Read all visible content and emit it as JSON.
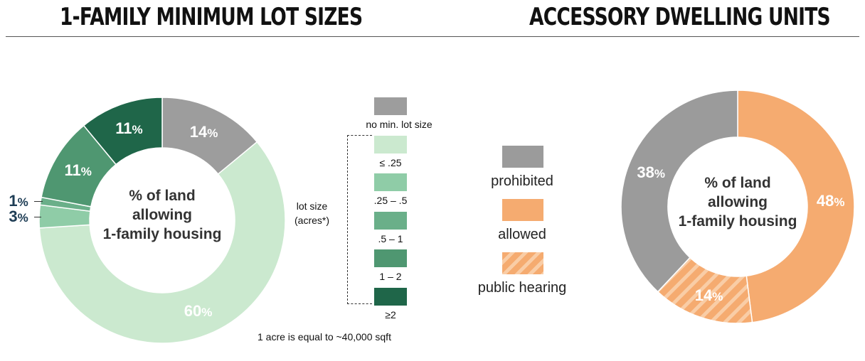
{
  "titles": {
    "left": "1-Family Minimum Lot Sizes",
    "right": "Accessory Dwelling Units"
  },
  "lot_legend": {
    "side_label_1": "lot size",
    "side_label_2": "(acres*)",
    "footnote": "1 acre is equal to ~40,000 sqft"
  },
  "adu_legend": [
    {
      "label": "prohibited",
      "color": "#9b9b9b",
      "pattern": "solid"
    },
    {
      "label": "allowed",
      "color": "#f5ab70",
      "pattern": "solid"
    },
    {
      "label": "public hearing",
      "color": "#f5ab70",
      "pattern": "hatched"
    }
  ],
  "chart_data": [
    {
      "type": "pie",
      "variant": "donut",
      "title": "1-Family Minimum Lot Sizes",
      "center_label_lines": [
        "% of land",
        "allowing",
        "1-family housing"
      ],
      "unit": "%",
      "slices": [
        {
          "category": "no min. lot size",
          "value": 14,
          "color": "#9d9d9d"
        },
        {
          "category": "≤ .25",
          "value": 60,
          "color": "#cbe9cf"
        },
        {
          "category": ".25 – .5",
          "value": 3,
          "color": "#8fcca7"
        },
        {
          "category": ".5 – 1",
          "value": 1,
          "color": "#6aaf89"
        },
        {
          "category": "1 – 2",
          "value": 11,
          "color": "#4f9771"
        },
        {
          "category": "≥2",
          "value": 11,
          "color": "#1f6649"
        }
      ],
      "legend_placement": "right"
    },
    {
      "type": "pie",
      "variant": "donut",
      "title": "Accessory Dwelling Units",
      "center_label_lines": [
        "% of land",
        "allowing",
        "1-family housing"
      ],
      "unit": "%",
      "slices": [
        {
          "category": "allowed",
          "value": 48,
          "color": "#f5ab70",
          "pattern": "solid"
        },
        {
          "category": "public hearing",
          "value": 14,
          "color": "#f5ab70",
          "pattern": "hatched"
        },
        {
          "category": "prohibited",
          "value": 38,
          "color": "#9b9b9b",
          "pattern": "solid"
        }
      ],
      "legend_placement": "left"
    }
  ]
}
